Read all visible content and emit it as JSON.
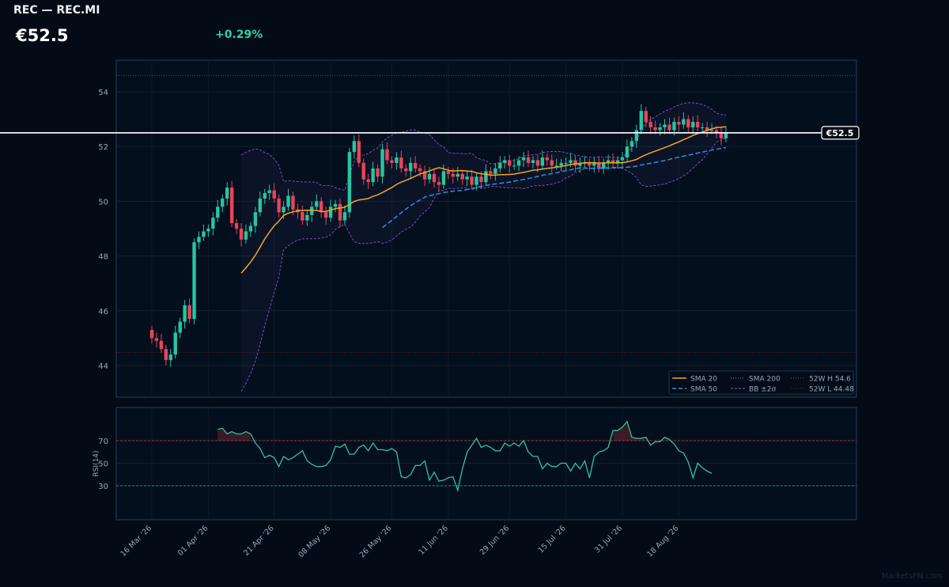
{
  "header": {
    "title": "REC — REC.MI",
    "price": "€52.5",
    "change": "+0.29%"
  },
  "watermark": "MarketsFN.com",
  "colors": {
    "background": "#020b16",
    "up": "#26c6a0",
    "down": "#e8455a",
    "sma20": "#f5a623",
    "sma50": "#2f8fe0",
    "bollinger": "#8a55c8",
    "rsi": "#33c2a0",
    "high52": "#7a6a30",
    "low52": "#6a2a2a"
  },
  "chart_data": [
    {
      "type": "candlestick",
      "name": "price-panel",
      "ylim": [
        43.5,
        55.5
      ],
      "ytick_labels": [
        "44",
        "46",
        "48",
        "50",
        "52",
        "54"
      ],
      "yticks": [
        44,
        46,
        48,
        50,
        52,
        54
      ],
      "xtick_labels": [
        "16 Mar '26",
        "01 Apr '26",
        "21 Apr '26",
        "08 May '26",
        "26 May '26",
        "11 Jun '26",
        "29 Jun '26",
        "15 Jul '26",
        "31 Jul '26",
        "18 Aug '26"
      ],
      "xtick_index": [
        0,
        12,
        26,
        38,
        51,
        63,
        76,
        88,
        100,
        112
      ],
      "last_price": 52.5,
      "last_price_label": "€52.5",
      "high_52w": 54.6,
      "low_52w": 44.48,
      "legend": {
        "placement": "bottom-right",
        "items": [
          "SMA 20",
          "SMA 50",
          "SMA 200",
          "BB ±2σ",
          "52W H 54.6",
          "52W L 44.48"
        ]
      },
      "closes": [
        45.0,
        44.9,
        44.6,
        44.2,
        44.4,
        45.2,
        45.6,
        46.2,
        45.7,
        48.5,
        48.7,
        48.9,
        49.0,
        49.4,
        49.8,
        50.1,
        50.5,
        49.2,
        49.0,
        48.6,
        48.9,
        49.1,
        49.6,
        50.1,
        50.3,
        50.4,
        50.1,
        49.6,
        49.8,
        50.2,
        49.7,
        49.6,
        49.3,
        49.5,
        49.8,
        50.0,
        49.6,
        49.4,
        49.8,
        49.9,
        49.3,
        49.6,
        51.8,
        52.2,
        51.4,
        50.8,
        50.7,
        51.2,
        50.9,
        51.9,
        51.5,
        51.4,
        51.6,
        51.2,
        51.1,
        51.4,
        51.2,
        51.1,
        50.8,
        51.0,
        50.7,
        50.6,
        51.1,
        51.0,
        50.9,
        51.0,
        50.8,
        50.9,
        50.6,
        50.9,
        50.7,
        51.1,
        51.0,
        51.2,
        51.4,
        51.5,
        51.3,
        51.3,
        51.5,
        51.6,
        51.4,
        51.5,
        51.3,
        51.6,
        51.5,
        51.3,
        51.3,
        51.4,
        51.4,
        51.5,
        51.3,
        51.4,
        51.4,
        51.3,
        51.4,
        51.2,
        51.4,
        51.5,
        51.4,
        51.5,
        51.6,
        52.0,
        52.2,
        52.6,
        53.3,
        52.9,
        52.7,
        52.6,
        52.7,
        52.8,
        52.6,
        52.9,
        52.8,
        53.0,
        52.7,
        52.9,
        52.7,
        52.7,
        52.6,
        52.6,
        52.5,
        52.3,
        52.5
      ],
      "up_color_key": "up",
      "down_color_key": "down"
    },
    {
      "type": "line",
      "name": "rsi-panel",
      "ylabel": "RSI(14)",
      "ylim": [
        0,
        100
      ],
      "ytick_labels": [
        "30",
        "50",
        "70"
      ],
      "yticks": [
        30,
        50,
        70
      ],
      "overbought": 70,
      "oversold": 30,
      "start_index": 14,
      "values": [
        80,
        81,
        76,
        78,
        76,
        76,
        78,
        76,
        68,
        63,
        55,
        57,
        55,
        47,
        56,
        53,
        55,
        58,
        61,
        52,
        49,
        47,
        47,
        48,
        53,
        65,
        64,
        67,
        58,
        58,
        64,
        66,
        61,
        68,
        62,
        62,
        61,
        63,
        60,
        38,
        37,
        40,
        48,
        48,
        52,
        35,
        42,
        34,
        35,
        37,
        38,
        26,
        45,
        60,
        66,
        72,
        64,
        66,
        64,
        61,
        61,
        68,
        65,
        68,
        65,
        70,
        60,
        56,
        56,
        45,
        50,
        47,
        47,
        50,
        50,
        43,
        50,
        45,
        52,
        37,
        56,
        60,
        61,
        64,
        79,
        79,
        82,
        87,
        73,
        72,
        72,
        73,
        66,
        69,
        69,
        73,
        71,
        67,
        61,
        59,
        51,
        37,
        50,
        46,
        43,
        41
      ]
    }
  ]
}
